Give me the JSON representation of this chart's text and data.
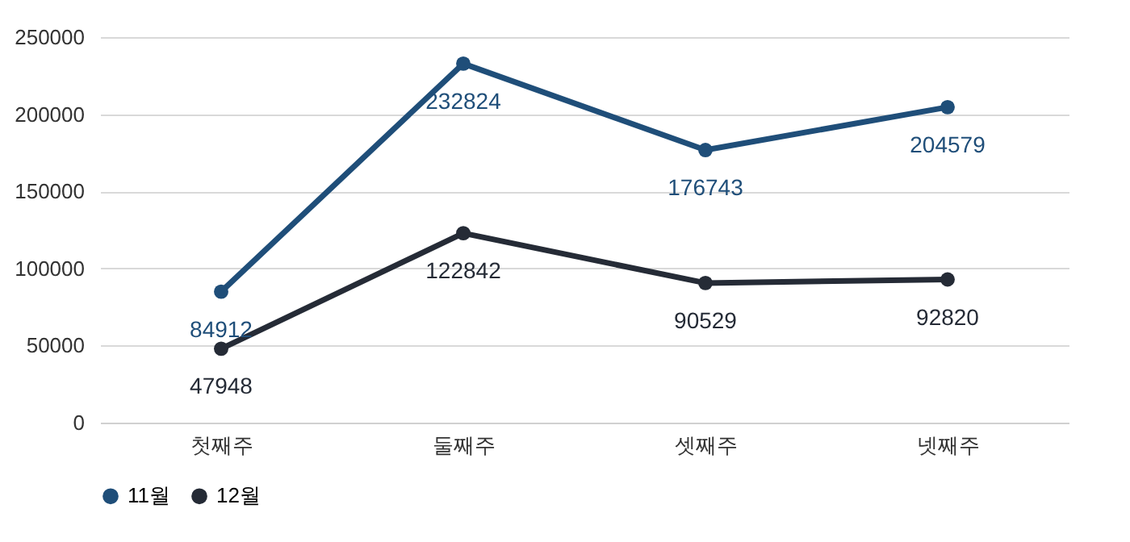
{
  "chart_data": {
    "type": "line",
    "categories": [
      "첫째주",
      "둘째주",
      "셋째주",
      "넷째주"
    ],
    "series": [
      {
        "name": "11월",
        "color": "#1f4e79",
        "values": [
          84912,
          232824,
          176743,
          204579
        ]
      },
      {
        "name": "12월",
        "color": "#252b36",
        "values": [
          47948,
          122842,
          90529,
          92820
        ]
      }
    ],
    "ylim": [
      0,
      250000
    ],
    "yticks": [
      0,
      50000,
      100000,
      150000,
      200000,
      250000
    ],
    "grid": "y",
    "legend": "bottom",
    "marker": "circle",
    "line_style": "solid",
    "data_labels": true
  }
}
